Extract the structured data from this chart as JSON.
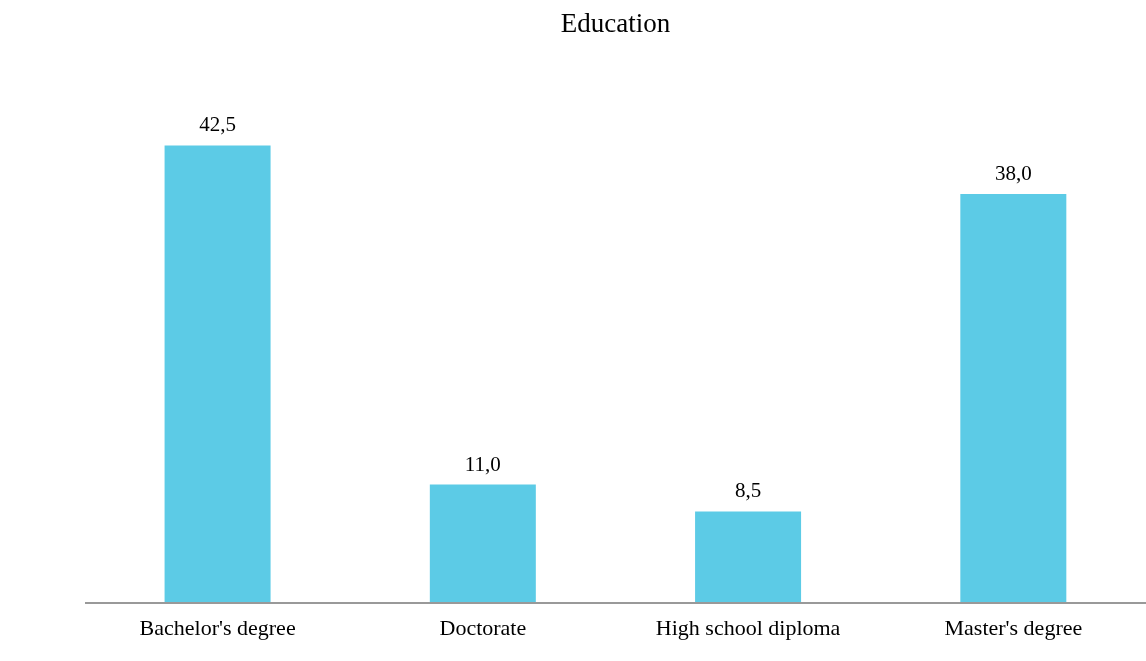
{
  "chart_data": {
    "type": "bar",
    "title": "Education",
    "categories": [
      "Bachelor's degree",
      "Doctorate",
      "High school diploma",
      "Master's degree"
    ],
    "values": [
      42.5,
      11.0,
      8.5,
      38.0
    ],
    "value_labels": [
      "42,5",
      "11,0",
      "8,5",
      "38,0"
    ],
    "color": "#5ccbe6"
  }
}
